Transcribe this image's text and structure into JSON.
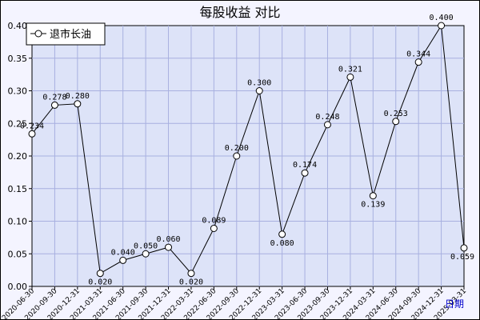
{
  "chart_data": {
    "type": "line",
    "title": "每股收益  对比",
    "xlabel": "日期",
    "ylabel": "",
    "ylim": [
      0,
      0.4
    ],
    "yticks": [
      "0.00",
      "0.05",
      "0.10",
      "0.15",
      "0.20",
      "0.25",
      "0.30",
      "0.35",
      "0.40"
    ],
    "grid": true,
    "legend_position": "top-left",
    "categories": [
      "2020-06-30",
      "2020-09-30",
      "2020-12-31",
      "2021-03-31",
      "2021-06-30",
      "2021-09-30",
      "2021-12-31",
      "2022-03-31",
      "2022-06-30",
      "2022-09-30",
      "2022-12-31",
      "2023-03-31",
      "2023-06-30",
      "2023-09-30",
      "2023-12-31",
      "2024-03-31",
      "2024-06-30",
      "2024-09-30",
      "2024-12-31",
      "2025-03-31"
    ],
    "series": [
      {
        "name": "退市长油",
        "values": [
          0.234,
          0.278,
          0.28,
          0.02,
          0.04,
          0.05,
          0.06,
          0.02,
          0.089,
          0.2,
          0.3,
          0.08,
          0.174,
          0.248,
          0.321,
          0.139,
          0.253,
          0.344,
          0.4,
          0.059
        ],
        "labels": [
          "0.234",
          "0.278",
          "0.280",
          "0.020",
          "0.040",
          "0.050",
          "0.060",
          "0.020",
          "0.089",
          "0.200",
          "0.300",
          "0.080",
          "0.174",
          "0.248",
          "0.321",
          "0.139",
          "0.253",
          "0.344",
          "0.400",
          "0.059"
        ]
      }
    ],
    "colors": {
      "plot_bg": "#dde3f8",
      "grid": "#a8b0e0",
      "line": "#000000",
      "tick_label": "#000000",
      "xlabel": "#0000cc"
    }
  }
}
